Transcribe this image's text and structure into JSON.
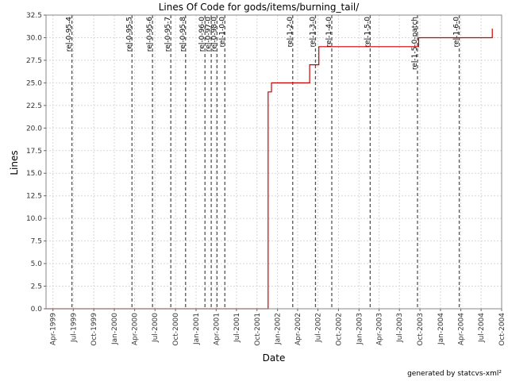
{
  "footer": "generated by statcvs-xml²",
  "chart_data": {
    "type": "line",
    "title": "Lines Of Code for gods/items/burning_tail/",
    "xlabel": "Date",
    "ylabel": "Lines",
    "xlim": [
      "1999-03-01",
      "2004-10-01"
    ],
    "ylim": [
      0,
      32.5
    ],
    "grid": true,
    "y_ticks": [
      "0.0",
      "2.5",
      "5.0",
      "7.5",
      "10.0",
      "12.5",
      "15.0",
      "17.5",
      "20.0",
      "22.5",
      "25.0",
      "27.5",
      "30.0",
      "32.5"
    ],
    "x_ticks": [
      {
        "date": "1999-04-01",
        "label": "Apr-1999"
      },
      {
        "date": "1999-07-01",
        "label": "Jul-1999"
      },
      {
        "date": "1999-10-01",
        "label": "Oct-1999"
      },
      {
        "date": "2000-01-01",
        "label": "Jan-2000"
      },
      {
        "date": "2000-04-01",
        "label": "Apr-2000"
      },
      {
        "date": "2000-07-01",
        "label": "Jul-2000"
      },
      {
        "date": "2000-10-01",
        "label": "Oct-2000"
      },
      {
        "date": "2001-01-01",
        "label": "Jan-2001"
      },
      {
        "date": "2001-04-01",
        "label": "Apr-2001"
      },
      {
        "date": "2001-07-01",
        "label": "Jul-2001"
      },
      {
        "date": "2001-10-01",
        "label": "Oct-2001"
      },
      {
        "date": "2002-01-01",
        "label": "Jan-2002"
      },
      {
        "date": "2002-04-01",
        "label": "Apr-2002"
      },
      {
        "date": "2002-07-01",
        "label": "Jul-2002"
      },
      {
        "date": "2002-10-01",
        "label": "Oct-2002"
      },
      {
        "date": "2003-01-01",
        "label": "Jan-2003"
      },
      {
        "date": "2003-04-01",
        "label": "Apr-2003"
      },
      {
        "date": "2003-07-01",
        "label": "Jul-2003"
      },
      {
        "date": "2003-10-01",
        "label": "Oct-2003"
      },
      {
        "date": "2004-01-01",
        "label": "Jan-2004"
      },
      {
        "date": "2004-04-01",
        "label": "Apr-2004"
      },
      {
        "date": "2004-07-01",
        "label": "Jul-2004"
      },
      {
        "date": "2004-10-01",
        "label": "Oct-2004"
      }
    ],
    "series": [
      {
        "color": "#cc0000",
        "step": true,
        "points": [
          {
            "x": "1999-03-01",
            "y": 0
          },
          {
            "x": "2001-11-20",
            "y": 0
          },
          {
            "x": "2001-11-20",
            "y": 24
          },
          {
            "x": "2001-12-05",
            "y": 24
          },
          {
            "x": "2001-12-05",
            "y": 25
          },
          {
            "x": "2002-05-25",
            "y": 25
          },
          {
            "x": "2002-05-25",
            "y": 27
          },
          {
            "x": "2002-07-05",
            "y": 27
          },
          {
            "x": "2002-07-05",
            "y": 29
          },
          {
            "x": "2003-09-25",
            "y": 29
          },
          {
            "x": "2003-09-25",
            "y": 30
          },
          {
            "x": "2004-08-20",
            "y": 30
          },
          {
            "x": "2004-08-20",
            "y": 31
          }
        ]
      }
    ],
    "markers": [
      {
        "date": "1999-06-25",
        "label": "rel-0-95-4"
      },
      {
        "date": "2000-03-20",
        "label": "rel-0-95-5"
      },
      {
        "date": "2000-06-20",
        "label": "rel-0-95-6"
      },
      {
        "date": "2000-09-10",
        "label": "rel-0-95-7"
      },
      {
        "date": "2000-11-15",
        "label": "rel-0-95-8"
      },
      {
        "date": "2001-02-10",
        "label": "rel-0-96-0"
      },
      {
        "date": "2001-03-10",
        "label": "rel-0-97-0"
      },
      {
        "date": "2001-04-05",
        "label": "rel-0-98-0"
      },
      {
        "date": "2001-05-10",
        "label": "rel-1-0-0"
      },
      {
        "date": "2002-03-10",
        "label": "rel-1-2-0"
      },
      {
        "date": "2002-06-20",
        "label": "rel-1-3-0"
      },
      {
        "date": "2002-09-01",
        "label": "rel-1-4-0"
      },
      {
        "date": "2003-02-20",
        "label": "rel-1-5-0"
      },
      {
        "date": "2003-09-20",
        "label": "rel-1-5-0-patch"
      },
      {
        "date": "2004-03-25",
        "label": "rel-1-6-0"
      }
    ]
  }
}
